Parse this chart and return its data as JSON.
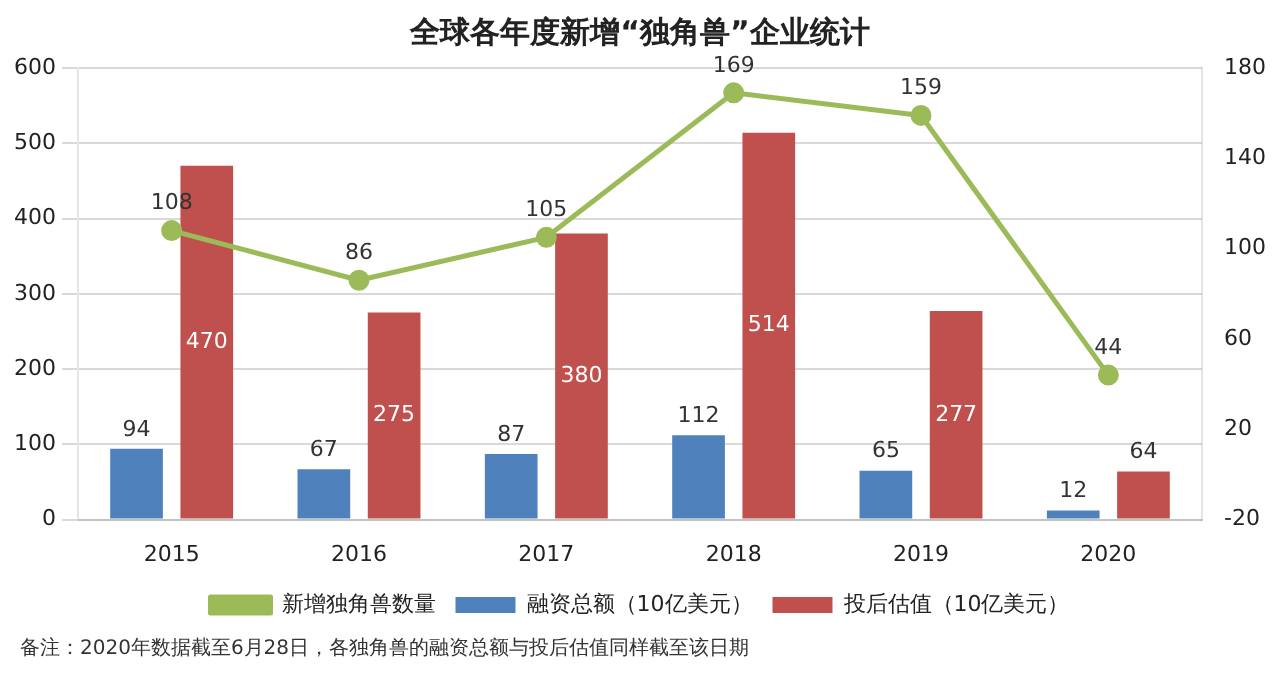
{
  "chart_data": {
    "type": "bar",
    "title": "全球各年度新增“独角兽”企业统计",
    "categories": [
      "2015",
      "2016",
      "2017",
      "2018",
      "2019",
      "2020"
    ],
    "series": [
      {
        "name": "融资总额（10亿美元）",
        "color": "#4f81bd",
        "values": [
          94,
          67,
          87,
          112,
          65,
          12
        ]
      },
      {
        "name": "投后估值（10亿美元）",
        "color": "#c0504d",
        "values": [
          470,
          275,
          380,
          514,
          277,
          64
        ]
      },
      {
        "name": "新增独角兽数量",
        "type": "line",
        "axis": "y2",
        "color": "#9bbb59",
        "marker": "circle",
        "values": [
          108,
          86,
          105,
          169,
          159,
          44
        ]
      }
    ],
    "ylim": [
      0,
      600
    ],
    "yticks": [
      0,
      100,
      200,
      300,
      400,
      500,
      600
    ],
    "y2lim": [
      -20,
      180
    ],
    "y2ticks": [
      -20,
      20,
      60,
      100,
      140,
      180
    ],
    "grid": "y",
    "legend": "bottom",
    "data_labels": true,
    "annotations": [
      "备注：2020年数据截至6月28日，各独角兽的融资总额与投后估值同样截至该日期"
    ]
  }
}
